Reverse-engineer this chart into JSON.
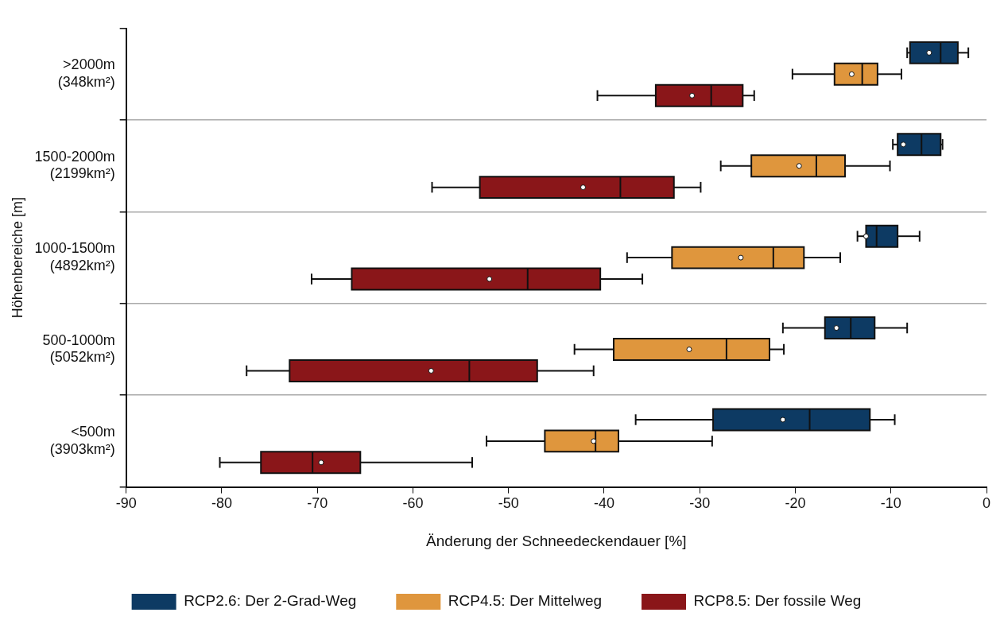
{
  "chart_data": {
    "type": "box",
    "orientation": "horizontal",
    "xlabel": "Änderung der Schneedeckendauer [%]",
    "ylabel": "Höhenbereiche [m]",
    "categories": [
      ">2000m (348km²)",
      "1500-2000m (2199km²)",
      "1000-1500m (4892km²)",
      "500-1000m (5052km²)",
      "<500m (3903km²)"
    ],
    "xlim": [
      -90,
      0
    ],
    "xticks": [
      -90,
      -80,
      -70,
      -60,
      -50,
      -40,
      -30,
      -20,
      -10,
      0
    ],
    "grid": "y",
    "legend": "bottom",
    "series": [
      {
        "name": "RCP2.6: Der 2-Grad-Weg",
        "color": "#0d3a63",
        "boxes": [
          {
            "low": -8.3,
            "q1": -8.0,
            "median": -4.8,
            "q3": -3.0,
            "high": -1.9,
            "mean": -6.0
          },
          {
            "low": -9.8,
            "q1": -9.3,
            "median": -6.8,
            "q3": -4.8,
            "high": -4.6,
            "mean": -8.7
          },
          {
            "low": -13.5,
            "q1": -12.6,
            "median": -11.5,
            "q3": -9.3,
            "high": -7.0,
            "mean": -12.6
          },
          {
            "low": -21.3,
            "q1": -16.9,
            "median": -14.2,
            "q3": -11.7,
            "high": -8.3,
            "mean": -15.7
          },
          {
            "low": -36.7,
            "q1": -28.6,
            "median": -18.5,
            "q3": -12.2,
            "high": -9.6,
            "mean": -21.3
          }
        ]
      },
      {
        "name": "RCP4.5: Der Mittelweg",
        "color": "#df963d",
        "boxes": [
          {
            "low": -20.3,
            "q1": -15.9,
            "median": -13.0,
            "q3": -11.4,
            "high": -8.9,
            "mean": -14.1
          },
          {
            "low": -27.8,
            "q1": -24.6,
            "median": -17.8,
            "q3": -14.8,
            "high": -10.1,
            "mean": -19.6
          },
          {
            "low": -37.6,
            "q1": -32.9,
            "median": -22.3,
            "q3": -19.1,
            "high": -15.3,
            "mean": -25.7
          },
          {
            "low": -43.1,
            "q1": -39.0,
            "median": -27.2,
            "q3": -22.7,
            "high": -21.2,
            "mean": -31.1
          },
          {
            "low": -52.3,
            "q1": -46.2,
            "median": -40.9,
            "q3": -38.5,
            "high": -28.7,
            "mean": -41.1
          }
        ]
      },
      {
        "name": "RCP8.5: Der fossile Weg",
        "color": "#8a1619",
        "boxes": [
          {
            "low": -40.7,
            "q1": -34.6,
            "median": -28.8,
            "q3": -25.5,
            "high": -24.3,
            "mean": -30.8
          },
          {
            "low": -58.0,
            "q1": -53.0,
            "median": -38.3,
            "q3": -32.7,
            "high": -29.9,
            "mean": -42.2
          },
          {
            "low": -70.6,
            "q1": -66.4,
            "median": -48.0,
            "q3": -40.4,
            "high": -36.0,
            "mean": -52.0
          },
          {
            "low": -77.4,
            "q1": -72.9,
            "median": -54.1,
            "q3": -47.0,
            "high": -41.1,
            "mean": -58.1
          },
          {
            "low": -80.2,
            "q1": -75.9,
            "median": -70.5,
            "q3": -65.5,
            "high": -53.8,
            "mean": -69.6
          }
        ]
      }
    ]
  }
}
